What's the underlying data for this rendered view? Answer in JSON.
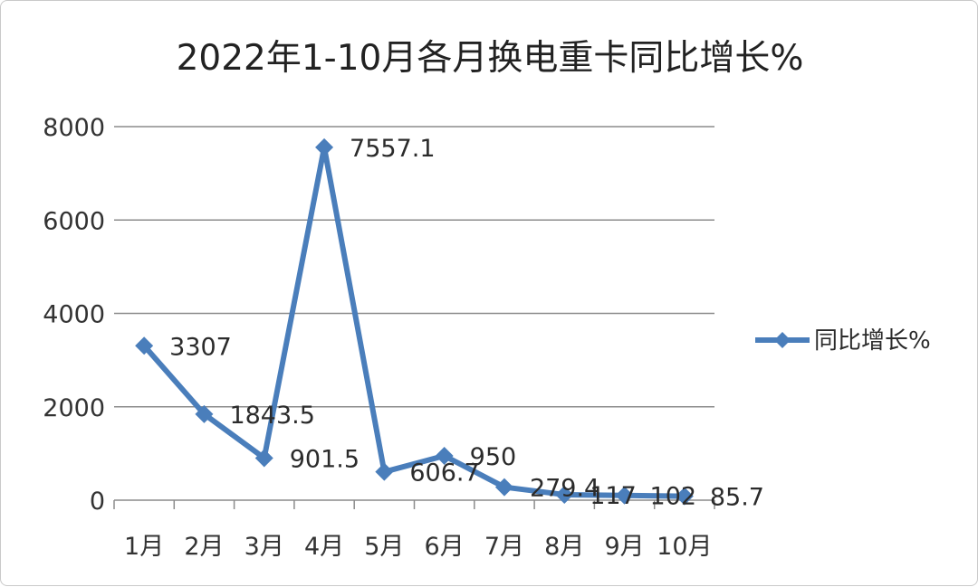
{
  "chart_data": {
    "type": "line",
    "title": "2022年1-10月各月换电重卡同比增长%",
    "categories": [
      "1月",
      "2月",
      "3月",
      "4月",
      "5月",
      "6月",
      "7月",
      "8月",
      "9月",
      "10月"
    ],
    "series": [
      {
        "name": "同比增长%",
        "values": [
          3307,
          1843.5,
          901.5,
          7557.1,
          606.7,
          950,
          279.4,
          117,
          102,
          85.7
        ],
        "data_labels": [
          "3307",
          "1843.5",
          "901.5",
          "7557.1",
          "606.7",
          "950",
          "279.4",
          "117",
          "102",
          "85.7"
        ],
        "color": "#4a7ebb",
        "marker": "diamond"
      }
    ],
    "y_ticks": [
      "0",
      "2000",
      "4000",
      "6000",
      "8000"
    ],
    "ylim": [
      0,
      8000
    ],
    "grid": true,
    "legend_position": "right"
  }
}
